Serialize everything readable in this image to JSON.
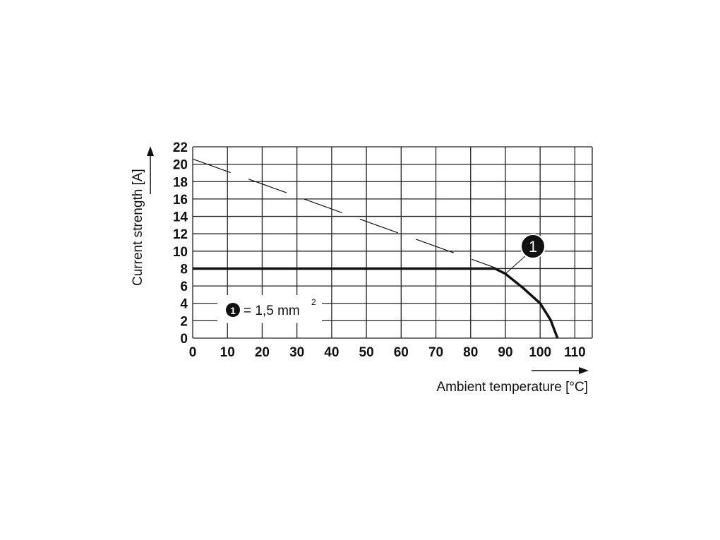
{
  "chart_data": {
    "type": "line",
    "xlabel": "Ambient temperature [°C]",
    "ylabel": "Current strength [A]",
    "xlim": [
      0,
      115
    ],
    "ylim": [
      0,
      22
    ],
    "xticks": [
      "0",
      "10",
      "20",
      "30",
      "40",
      "50",
      "60",
      "70",
      "80",
      "90",
      "100",
      "110"
    ],
    "yticks": [
      "0",
      "2",
      "4",
      "6",
      "8",
      "10",
      "12",
      "14",
      "16",
      "18",
      "20",
      "22"
    ],
    "grid": true,
    "series": [
      {
        "style": "dashed",
        "x": [
          0,
          87
        ],
        "y": [
          20.6,
          8.1
        ]
      },
      {
        "style": "solid-bold",
        "x": [
          0,
          87,
          90,
          95,
          100,
          103,
          105
        ],
        "y": [
          8,
          8,
          7.4,
          5.8,
          4.0,
          2.1,
          0
        ]
      }
    ],
    "annotation": {
      "marker": "1",
      "target_x": 90,
      "target_y": 7.4
    },
    "legend": {
      "marker": "1",
      "text": "= 1,5 mm",
      "superscript": "2"
    }
  }
}
